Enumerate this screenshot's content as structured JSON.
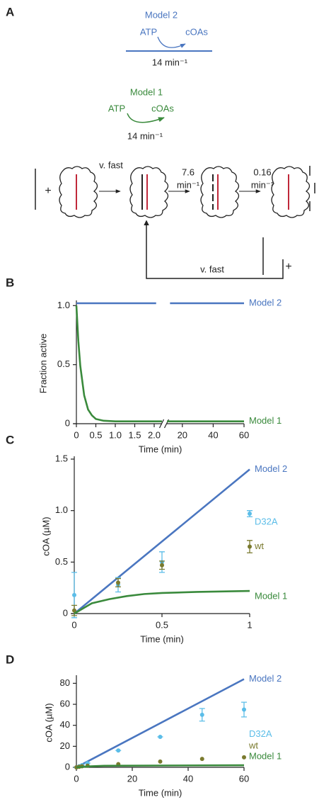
{
  "diagram": {
    "panel": "A",
    "model2": {
      "label": "Model 2",
      "substrate": "ATP",
      "product": "cOAs",
      "rate": "14 min⁻¹"
    },
    "model1": {
      "label": "Model 1",
      "substrate": "ATP",
      "product": "cOAs",
      "rate": "14 min⁻¹"
    },
    "steps": [
      "v. fast",
      [
        "7.6",
        "min⁻¹"
      ],
      [
        "0.16",
        "min⁻¹"
      ]
    ],
    "plus": [
      "+",
      "+"
    ],
    "return": "v. fast"
  },
  "chart_data": [
    {
      "type": "line",
      "panel": "B",
      "xlabel": "Time (min)",
      "ylabel": "Fraction active",
      "ylim": [
        0,
        1.02
      ],
      "yticks": [
        0,
        0.5,
        {
          "value": 1,
          "label": "1.0"
        }
      ],
      "x_segments": [
        {
          "xlim": [
            0,
            2.2
          ],
          "xticks": [
            0,
            0.5,
            {
              "value": 1,
              "label": "1.0"
            },
            1.5,
            {
              "value": 2,
              "label": "2.0"
            }
          ]
        },
        {
          "xlim": [
            10,
            60
          ],
          "xticks": [
            20,
            40,
            60
          ]
        }
      ],
      "series": [
        {
          "name": "Model 2",
          "color": "#4a76c0",
          "mode": "line",
          "x": [
            0,
            2.05,
            12,
            60
          ],
          "values": [
            1.02,
            1.02,
            1.02,
            1.02
          ]
        },
        {
          "name": "Model 1",
          "color": "#3a8a3c",
          "mode": "line",
          "x": [
            0,
            0.05,
            0.1,
            0.2,
            0.3,
            0.4,
            0.5,
            0.7,
            1,
            1.5,
            2.2,
            10,
            60
          ],
          "values": [
            1,
            0.7,
            0.49,
            0.24,
            0.12,
            0.07,
            0.04,
            0.025,
            0.02,
            0.02,
            0.02,
            0.02,
            0.02
          ]
        }
      ]
    },
    {
      "type": "line",
      "panel": "C",
      "xlabel": "Time (min)",
      "ylabel": "cOA (µM)",
      "xlim": [
        0,
        1
      ],
      "xticks": [
        0,
        0.5,
        1
      ],
      "ylim": [
        0,
        1.5
      ],
      "yticks": [
        0,
        0.5,
        {
          "value": 1,
          "label": "1.0"
        },
        1.5
      ],
      "series": [
        {
          "name": "Model 2",
          "color": "#4a76c0",
          "mode": "line",
          "x": [
            0,
            1
          ],
          "values": [
            0,
            1.4
          ]
        },
        {
          "name": "D32A",
          "color": "#5bbde8",
          "mode": "points",
          "x": [
            0,
            0.25,
            0.5,
            1
          ],
          "values": [
            0.18,
            0.28,
            0.5,
            0.97
          ],
          "errors": [
            0.22,
            0.07,
            0.1,
            0.03
          ]
        },
        {
          "name": "wt",
          "color": "#7a7a2e",
          "mode": "points",
          "x": [
            0,
            0.25,
            0.5,
            1
          ],
          "values": [
            0.03,
            0.3,
            0.47,
            0.65
          ],
          "errors": [
            0.05,
            0.04,
            0.04,
            0.06
          ]
        },
        {
          "name": "Model 1",
          "color": "#3a8a3c",
          "mode": "line",
          "x": [
            0,
            0.1,
            0.2,
            0.3,
            0.4,
            0.5,
            0.7,
            1
          ],
          "values": [
            0,
            0.1,
            0.14,
            0.17,
            0.19,
            0.2,
            0.21,
            0.22
          ]
        }
      ]
    },
    {
      "type": "line",
      "panel": "D",
      "xlabel": "Time (min)",
      "ylabel": "cOA (µM)",
      "xlim": [
        0,
        60
      ],
      "xticks": [
        0,
        20,
        40,
        60
      ],
      "ylim": [
        0,
        85
      ],
      "yticks": [
        0,
        20,
        40,
        60,
        80
      ],
      "series": [
        {
          "name": "Model 2",
          "color": "#4a76c0",
          "mode": "line",
          "x": [
            0,
            60
          ],
          "values": [
            0,
            84
          ]
        },
        {
          "name": "D32A",
          "color": "#5bbde8",
          "mode": "points",
          "x": [
            0,
            1,
            2,
            4,
            15,
            30,
            45,
            60
          ],
          "values": [
            0,
            1,
            2,
            4,
            16,
            29,
            50,
            55
          ],
          "errors": [
            0,
            0,
            0,
            0,
            0,
            0,
            6,
            7
          ]
        },
        {
          "name": "wt",
          "color": "#7a7a2e",
          "mode": "points",
          "x": [
            0,
            1,
            2,
            4,
            15,
            30,
            45,
            60
          ],
          "values": [
            0,
            0.5,
            1,
            1.5,
            3,
            5.5,
            8,
            9.5
          ]
        },
        {
          "name": "Model 1",
          "color": "#3a8a3c",
          "mode": "line",
          "x": [
            0,
            5,
            10,
            60
          ],
          "values": [
            0,
            1,
            1.5,
            2
          ]
        }
      ]
    }
  ]
}
